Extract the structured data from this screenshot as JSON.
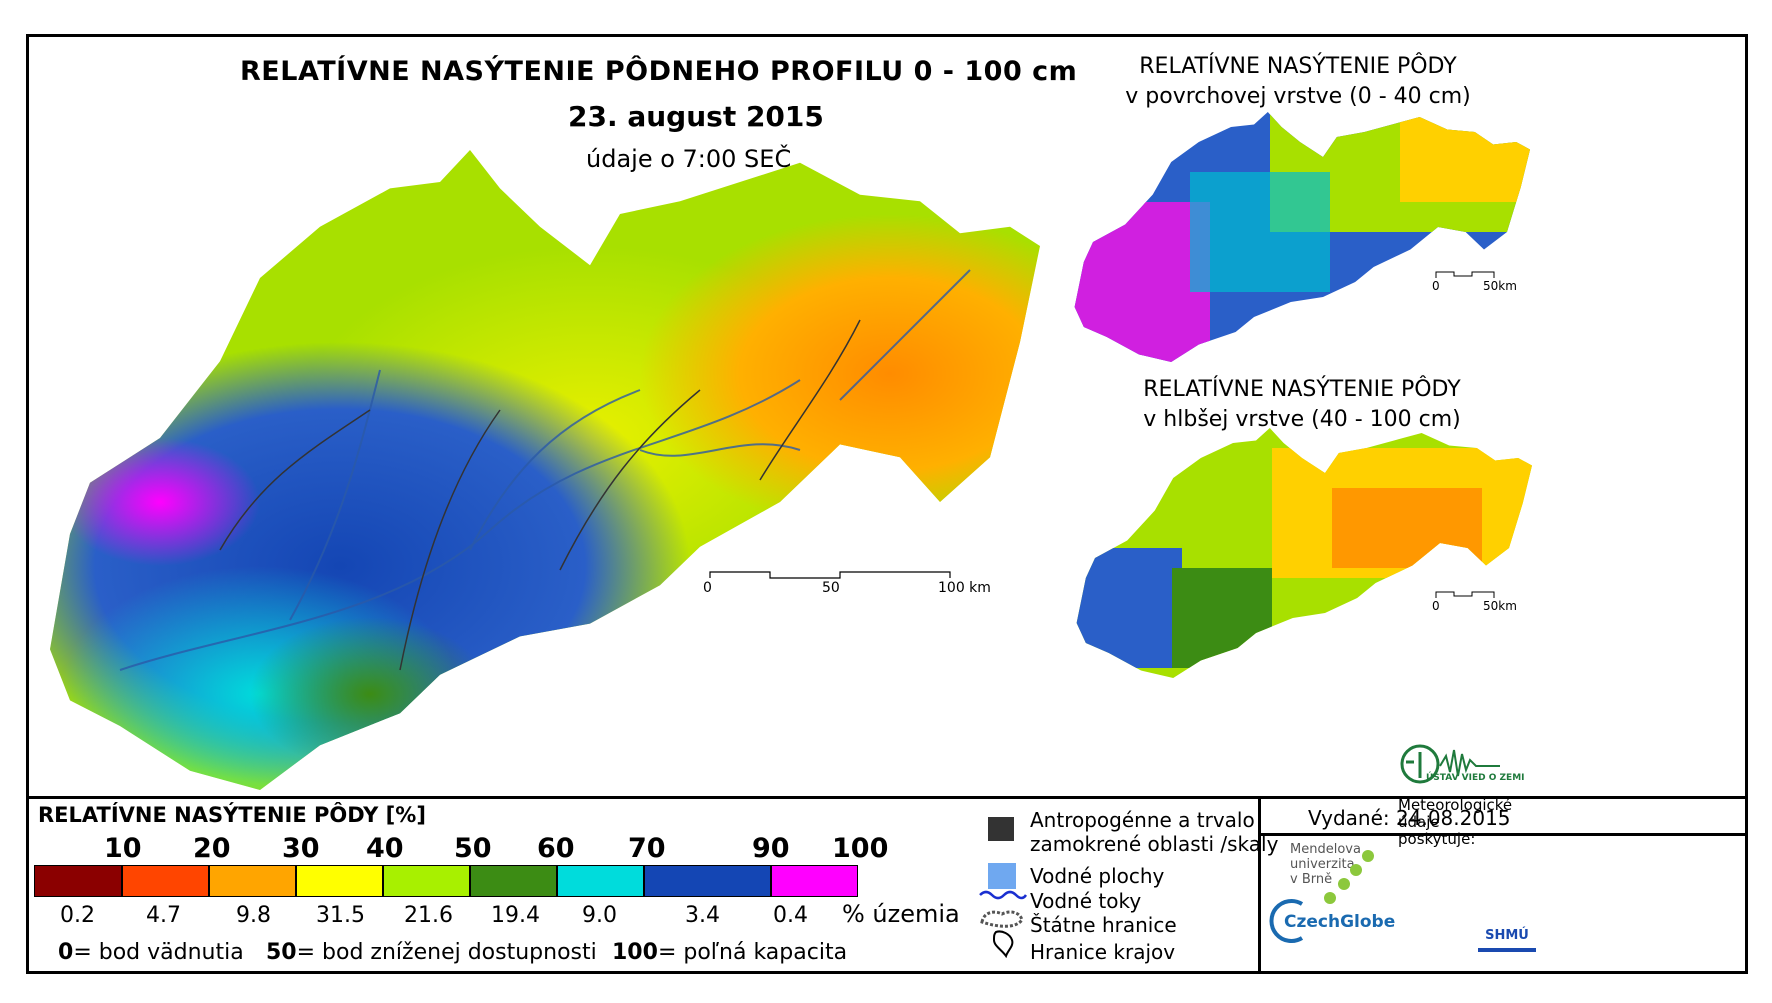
{
  "title": {
    "main": "RELATÍVNE NASÝTENIE PÔDNEHO PROFILU 0 - 100 cm",
    "date": "23. august 2015",
    "time": "údaje o 7:00 SEČ"
  },
  "insets": [
    {
      "line1": "RELATÍVNE NASÝTENIE PÔDY",
      "line2": "v povrchovej vrstve (0 - 40 cm)",
      "scale_start": "0",
      "scale_end": "50km"
    },
    {
      "line1": "RELATÍVNE NASÝTENIE PÔDY",
      "line2": "v hlbšej vrstve (40 - 100 cm)",
      "scale_start": "0",
      "scale_end": "50km"
    }
  ],
  "main_scale": {
    "labels": [
      "0",
      "50",
      "100 km"
    ]
  },
  "legend": {
    "title": "RELATÍVNE NASÝTENIE PÔDY [%]",
    "ticks": [
      "10",
      "20",
      "30",
      "40",
      "50",
      "60",
      "70",
      "90",
      "100"
    ],
    "classes": [
      {
        "color": "#8b0000",
        "pct": "0.2"
      },
      {
        "color": "#ff4500",
        "pct": "4.7"
      },
      {
        "color": "#ffa500",
        "pct": "9.8"
      },
      {
        "color": "#ffff00",
        "pct": "31.5"
      },
      {
        "color": "#a8f000",
        "pct": "21.6"
      },
      {
        "color": "#3c8c14",
        "pct": "19.4"
      },
      {
        "color": "#00dcdc",
        "pct": "9.0"
      },
      {
        "color": "#1446b4",
        "pct": "3.4"
      },
      {
        "color": "#ff00ff",
        "pct": "0.4"
      }
    ],
    "pct_unit": "% územia",
    "notes": [
      {
        "num": "0",
        "text": "= bod vädnutia"
      },
      {
        "num": "50",
        "text": "= bod zníženej dostupnosti"
      },
      {
        "num": "100",
        "text": "= poľná kapacita"
      }
    ]
  },
  "symbols": {
    "anthropogenic_line1": "Antropogénne a trvalo",
    "anthropogenic_line2": "zamokrené oblasti /skaly",
    "water_areas": "Vodné plochy",
    "rivers": "Vodné toky",
    "state_border": "Štátne hranice",
    "region_border": "Hranice krajov"
  },
  "issued": "Vydané: 24.08.2015",
  "logos": {
    "mendel_1": "Mendelova",
    "mendel_2": "univerzita",
    "mendel_3": "v Brně",
    "czechglobe": "CzechGlobe",
    "uvz": "ÚSTAV VIED O ZEMI",
    "meteo_1": "Meteorologické",
    "meteo_2": "údaje",
    "meteo_3": "poskytuje:",
    "shmu": "SHMÚ"
  }
}
